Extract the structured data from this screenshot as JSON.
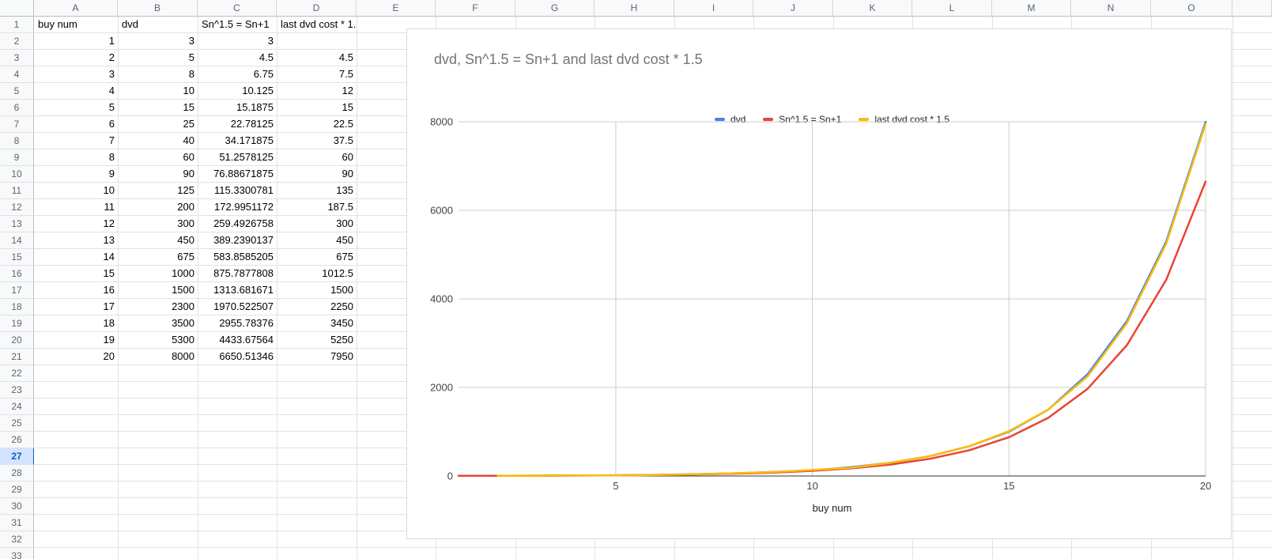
{
  "sheet": {
    "columns": [
      "A",
      "B",
      "C",
      "D",
      "E",
      "F",
      "G",
      "H",
      "I",
      "J",
      "K",
      "L",
      "M",
      "N",
      "O",
      ""
    ],
    "rows": [
      "1",
      "2",
      "3",
      "4",
      "5",
      "6",
      "7",
      "8",
      "9",
      "10",
      "11",
      "12",
      "13",
      "14",
      "15",
      "16",
      "17",
      "18",
      "19",
      "20",
      "21",
      "22",
      "23",
      "24",
      "25",
      "26",
      "27",
      "28",
      "29",
      "30",
      "31",
      "32",
      "33"
    ],
    "selected_row": "27",
    "colors": {
      "header_bg": "#f8f9fa",
      "header_text": "#5f6368",
      "gridline": "#e2e2e2",
      "selected_row_bg": "#d3e3fd",
      "selected_row_text": "#0b57d0"
    }
  },
  "table": {
    "column_labels": [
      "buy num",
      "dvd",
      "Sn^1.5 = Sn+1",
      "last dvd cost * 1.5"
    ],
    "data": [
      [
        "1",
        "3",
        "3",
        ""
      ],
      [
        "2",
        "5",
        "4.5",
        "4.5"
      ],
      [
        "3",
        "8",
        "6.75",
        "7.5"
      ],
      [
        "4",
        "10",
        "10.125",
        "12"
      ],
      [
        "5",
        "15",
        "15.1875",
        "15"
      ],
      [
        "6",
        "25",
        "22.78125",
        "22.5"
      ],
      [
        "7",
        "40",
        "34.171875",
        "37.5"
      ],
      [
        "8",
        "60",
        "51.2578125",
        "60"
      ],
      [
        "9",
        "90",
        "76.88671875",
        "90"
      ],
      [
        "10",
        "125",
        "115.3300781",
        "135"
      ],
      [
        "11",
        "200",
        "172.9951172",
        "187.5"
      ],
      [
        "12",
        "300",
        "259.4926758",
        "300"
      ],
      [
        "13",
        "450",
        "389.2390137",
        "450"
      ],
      [
        "14",
        "675",
        "583.8585205",
        "675"
      ],
      [
        "15",
        "1000",
        "875.7877808",
        "1012.5"
      ],
      [
        "16",
        "1500",
        "1313.681671",
        "1500"
      ],
      [
        "17",
        "2300",
        "1970.522507",
        "2250"
      ],
      [
        "18",
        "3500",
        "2955.78376",
        "3450"
      ],
      [
        "19",
        "5300",
        "4433.67564",
        "5250"
      ],
      [
        "20",
        "8000",
        "6650.51346",
        "7950"
      ]
    ]
  },
  "chart_data": {
    "type": "line",
    "title": "dvd, Sn^1.5 = Sn+1 and last dvd cost * 1.5",
    "xlabel": "buy num",
    "ylabel": "",
    "x": [
      1,
      2,
      3,
      4,
      5,
      6,
      7,
      8,
      9,
      10,
      11,
      12,
      13,
      14,
      15,
      16,
      17,
      18,
      19,
      20
    ],
    "series": [
      {
        "name": "dvd",
        "color": "#4285F4",
        "values": [
          3,
          5,
          8,
          10,
          15,
          25,
          40,
          60,
          90,
          125,
          200,
          300,
          450,
          675,
          1000,
          1500,
          2300,
          3500,
          5300,
          8000
        ]
      },
      {
        "name": "Sn^1.5 = Sn+1",
        "color": "#EA4335",
        "values": [
          3,
          4.5,
          6.75,
          10.125,
          15.1875,
          22.78125,
          34.171875,
          51.2578125,
          76.88671875,
          115.3300781,
          172.9951172,
          259.4926758,
          389.2390137,
          583.8585205,
          875.7877808,
          1313.681671,
          1970.522507,
          2955.78376,
          4433.67564,
          6650.51346
        ]
      },
      {
        "name": "last dvd cost * 1.5",
        "color": "#FBBC04",
        "values": [
          null,
          4.5,
          7.5,
          12,
          15,
          22.5,
          37.5,
          60,
          90,
          135,
          187.5,
          300,
          450,
          675,
          1012.5,
          1500,
          2250,
          3450,
          5250,
          7950
        ]
      }
    ],
    "xlim": [
      1,
      20
    ],
    "ylim": [
      0,
      8000
    ],
    "xticks": [
      5,
      10,
      15,
      20
    ],
    "yticks": [
      0,
      2000,
      4000,
      6000,
      8000
    ],
    "grid": true,
    "legend_position": "top",
    "gridline_color": "#cccccc",
    "baseline_color": "#333333",
    "tick_label_color": "#444444"
  }
}
